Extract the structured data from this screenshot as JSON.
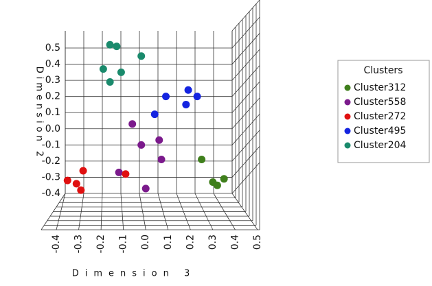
{
  "chart_data": {
    "type": "scatter",
    "xlabel": "Dimension 3",
    "ylabel": "Dimension 2",
    "legend_title": "Clusters",
    "legend": "right",
    "xlim": [
      -0.4,
      0.5
    ],
    "ylim": [
      -0.4,
      0.5
    ],
    "xticks": [
      -0.4,
      -0.3,
      -0.2,
      -0.1,
      {
        "value": 0,
        "label": "0.0"
      },
      0.1,
      0.2,
      0.3,
      0.4,
      0.5
    ],
    "yticks": [
      0.5,
      0.4,
      0.3,
      0.2,
      0.1,
      {
        "value": 0,
        "label": "0.0"
      },
      -0.1,
      -0.2,
      -0.3,
      -0.4
    ],
    "grid": true,
    "series": [
      {
        "name": "Cluster312",
        "color": "#3f7f1c",
        "x": [
          0.25,
          0.3,
          0.32,
          0.35
        ],
        "values": [
          -0.19,
          -0.33,
          -0.35,
          -0.31
        ]
      },
      {
        "name": "Cluster558",
        "color": "#7b1a8c",
        "x": [
          -0.06,
          -0.02,
          0.06,
          0.07,
          -0.12,
          0.0
        ],
        "values": [
          0.03,
          -0.1,
          -0.07,
          -0.19,
          -0.27,
          -0.37
        ]
      },
      {
        "name": "Cluster272",
        "color": "#e01010",
        "x": [
          -0.28,
          -0.35,
          -0.31,
          -0.29,
          -0.09
        ],
        "values": [
          -0.26,
          -0.32,
          -0.34,
          -0.38,
          -0.28
        ]
      },
      {
        "name": "Cluster495",
        "color": "#1424e0",
        "x": [
          0.09,
          0.19,
          0.23,
          0.18,
          0.04
        ],
        "values": [
          0.2,
          0.24,
          0.2,
          0.15,
          0.09
        ]
      },
      {
        "name": "Cluster204",
        "color": "#1a8a6c",
        "x": [
          -0.16,
          -0.13,
          -0.02,
          -0.19,
          -0.11,
          -0.16
        ],
        "values": [
          0.52,
          0.51,
          0.45,
          0.37,
          0.35,
          0.29
        ]
      }
    ]
  }
}
